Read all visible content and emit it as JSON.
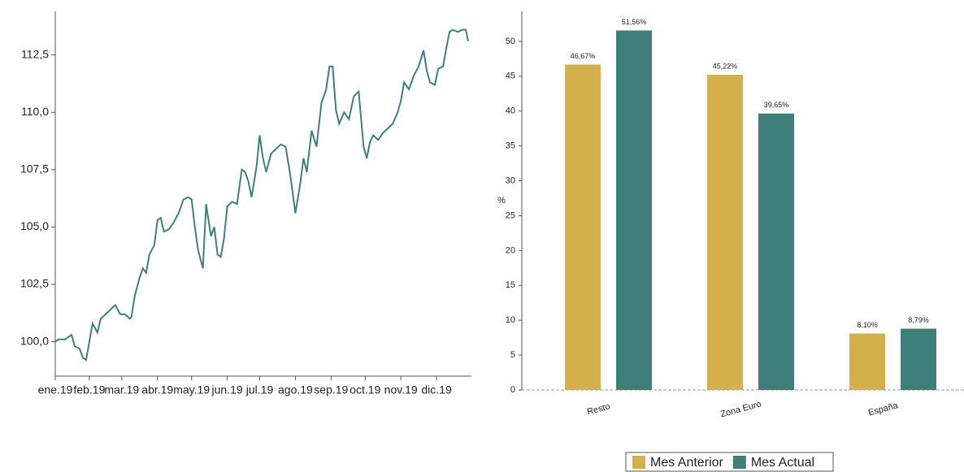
{
  "chart_data": [
    {
      "type": "line",
      "color": "#3e7f7c",
      "x": [
        0,
        2,
        6,
        10,
        12,
        15,
        17,
        19,
        21,
        23,
        26,
        28,
        31,
        34,
        37,
        40,
        43,
        46,
        47,
        49,
        52,
        54,
        56,
        58,
        61,
        63,
        65,
        67,
        70,
        73,
        76,
        79,
        82,
        84,
        86,
        88,
        91,
        93,
        94,
        96,
        98,
        100,
        102,
        104,
        106,
        109,
        112,
        115,
        117,
        119,
        121,
        124,
        126,
        128,
        130,
        133,
        136,
        139,
        142,
        145,
        148,
        151,
        153,
        155,
        158,
        161,
        164,
        167,
        169,
        171,
        173,
        175,
        178,
        181,
        184,
        187,
        190,
        192,
        194,
        196,
        199,
        202,
        205,
        208,
        211,
        213,
        215,
        218,
        221,
        224,
        227,
        229,
        231,
        234,
        236,
        239,
        241,
        243,
        245,
        248,
        251,
        253,
        254.5
      ],
      "values": [
        100.0,
        100.1,
        100.1,
        100.3,
        99.8,
        99.7,
        99.3,
        99.2,
        100.0,
        100.8,
        100.4,
        101.0,
        101.2,
        101.4,
        101.6,
        101.2,
        101.2,
        101.0,
        101.1,
        102.0,
        102.8,
        103.2,
        103.0,
        103.8,
        104.2,
        105.3,
        105.4,
        104.8,
        104.9,
        105.2,
        105.6,
        106.2,
        106.3,
        106.2,
        105.0,
        104.0,
        103.2,
        106.0,
        105.5,
        104.6,
        105.0,
        103.8,
        103.7,
        104.5,
        105.9,
        106.1,
        106.0,
        107.5,
        107.4,
        107.0,
        106.3,
        107.6,
        109.0,
        108.0,
        107.4,
        108.2,
        108.4,
        108.6,
        108.5,
        107.2,
        105.6,
        106.9,
        108.0,
        107.4,
        109.2,
        108.5,
        110.4,
        111.0,
        112.0,
        112.0,
        110.1,
        109.5,
        110.0,
        109.7,
        110.7,
        110.9,
        108.5,
        108.0,
        108.7,
        109.0,
        108.8,
        109.1,
        109.3,
        109.5,
        110.0,
        110.5,
        111.3,
        111.0,
        111.6,
        112.0,
        112.7,
        111.8,
        111.3,
        111.2,
        111.9,
        112.0,
        112.8,
        113.5,
        113.6,
        113.5,
        113.6,
        113.6,
        113.1
      ],
      "xlim": [
        0,
        255
      ],
      "xticks": [
        {
          "value": 0,
          "label": "ene.19"
        },
        {
          "value": 21,
          "label": "feb.19"
        },
        {
          "value": 41,
          "label": "mar.19"
        },
        {
          "value": 63,
          "label": "abr.19"
        },
        {
          "value": 84,
          "label": "may.19"
        },
        {
          "value": 106,
          "label": "jun.19"
        },
        {
          "value": 126,
          "label": "jul.19"
        },
        {
          "value": 148,
          "label": "ago.19"
        },
        {
          "value": 170,
          "label": "sep.19"
        },
        {
          "value": 191,
          "label": "oct.19"
        },
        {
          "value": 213,
          "label": "nov.19"
        },
        {
          "value": 235,
          "label": "dic.19"
        }
      ],
      "ylim": [
        98.5,
        114.4
      ],
      "yticks": [
        {
          "value": 100,
          "label": "100,0"
        },
        {
          "value": 102.5,
          "label": "102,5"
        },
        {
          "value": 105,
          "label": "105,0"
        },
        {
          "value": 107.5,
          "label": "107,5"
        },
        {
          "value": 110,
          "label": "110,0"
        },
        {
          "value": 112.5,
          "label": "112,5"
        }
      ]
    },
    {
      "type": "bar",
      "y_label": "%",
      "categories": [
        "Resto",
        "Zona Euro",
        "España"
      ],
      "series": [
        {
          "name": "Mes Anterior",
          "color": "#d4af4a",
          "values": [
            46.67,
            45.22,
            8.1
          ],
          "value_labels": [
            "46,67%",
            "45,22%",
            "8,10%"
          ]
        },
        {
          "name": "Mes Actual",
          "color": "#3e7f7c",
          "values": [
            51.56,
            39.65,
            8.79
          ],
          "value_labels": [
            "51,56%",
            "39,65%",
            "8,79%"
          ]
        }
      ],
      "ylim": [
        0,
        54.3
      ],
      "yticks": [
        0,
        5,
        10,
        15,
        20,
        25,
        30,
        35,
        40,
        45,
        50
      ],
      "legend": "bottom"
    }
  ]
}
